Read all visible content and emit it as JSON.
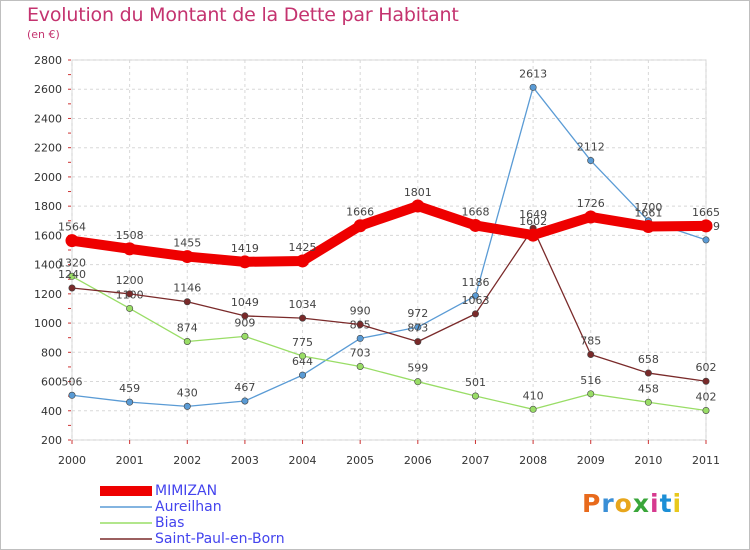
{
  "header": {
    "title": "Evolution du Montant de la Dette par Habitant",
    "subtitle": "(en €)"
  },
  "logo": {
    "text": "Proxiti",
    "colors": [
      "#e86a1c",
      "#3a8fd6",
      "#e8a61c",
      "#3aa63a",
      "#d63a8f",
      "#1c8fd6",
      "#e8c81c"
    ]
  },
  "chart_data": {
    "type": "line",
    "categories": [
      "2000",
      "2001",
      "2002",
      "2003",
      "2004",
      "2005",
      "2006",
      "2007",
      "2008",
      "2009",
      "2010",
      "2011"
    ],
    "ylim": [
      200,
      2800
    ],
    "yticks": [
      200,
      400,
      600,
      800,
      1000,
      1200,
      1400,
      1600,
      1800,
      2000,
      2200,
      2400,
      2600,
      2800
    ],
    "grid": true,
    "legend_position": "bottom-left",
    "series": [
      {
        "name": "MIMIZAN",
        "color": "#ee0000",
        "emphasis": true,
        "values": [
          1564,
          1508,
          1455,
          1419,
          1425,
          1666,
          1801,
          1668,
          1602,
          1726,
          1661,
          1665
        ]
      },
      {
        "name": "Aureilhan",
        "color": "#5a9bd5",
        "values": [
          506,
          459,
          430,
          467,
          644,
          895,
          972,
          1186,
          2613,
          2112,
          1700,
          1569
        ]
      },
      {
        "name": "Bias",
        "color": "#99dd66",
        "values": [
          1320,
          1100,
          874,
          909,
          775,
          703,
          599,
          501,
          410,
          516,
          458,
          402
        ]
      },
      {
        "name": "Saint-Paul-en-Born",
        "color": "#7a2a2a",
        "values": [
          1240,
          1200,
          1146,
          1049,
          1034,
          990,
          873,
          1063,
          1649,
          785,
          658,
          602
        ]
      }
    ]
  }
}
